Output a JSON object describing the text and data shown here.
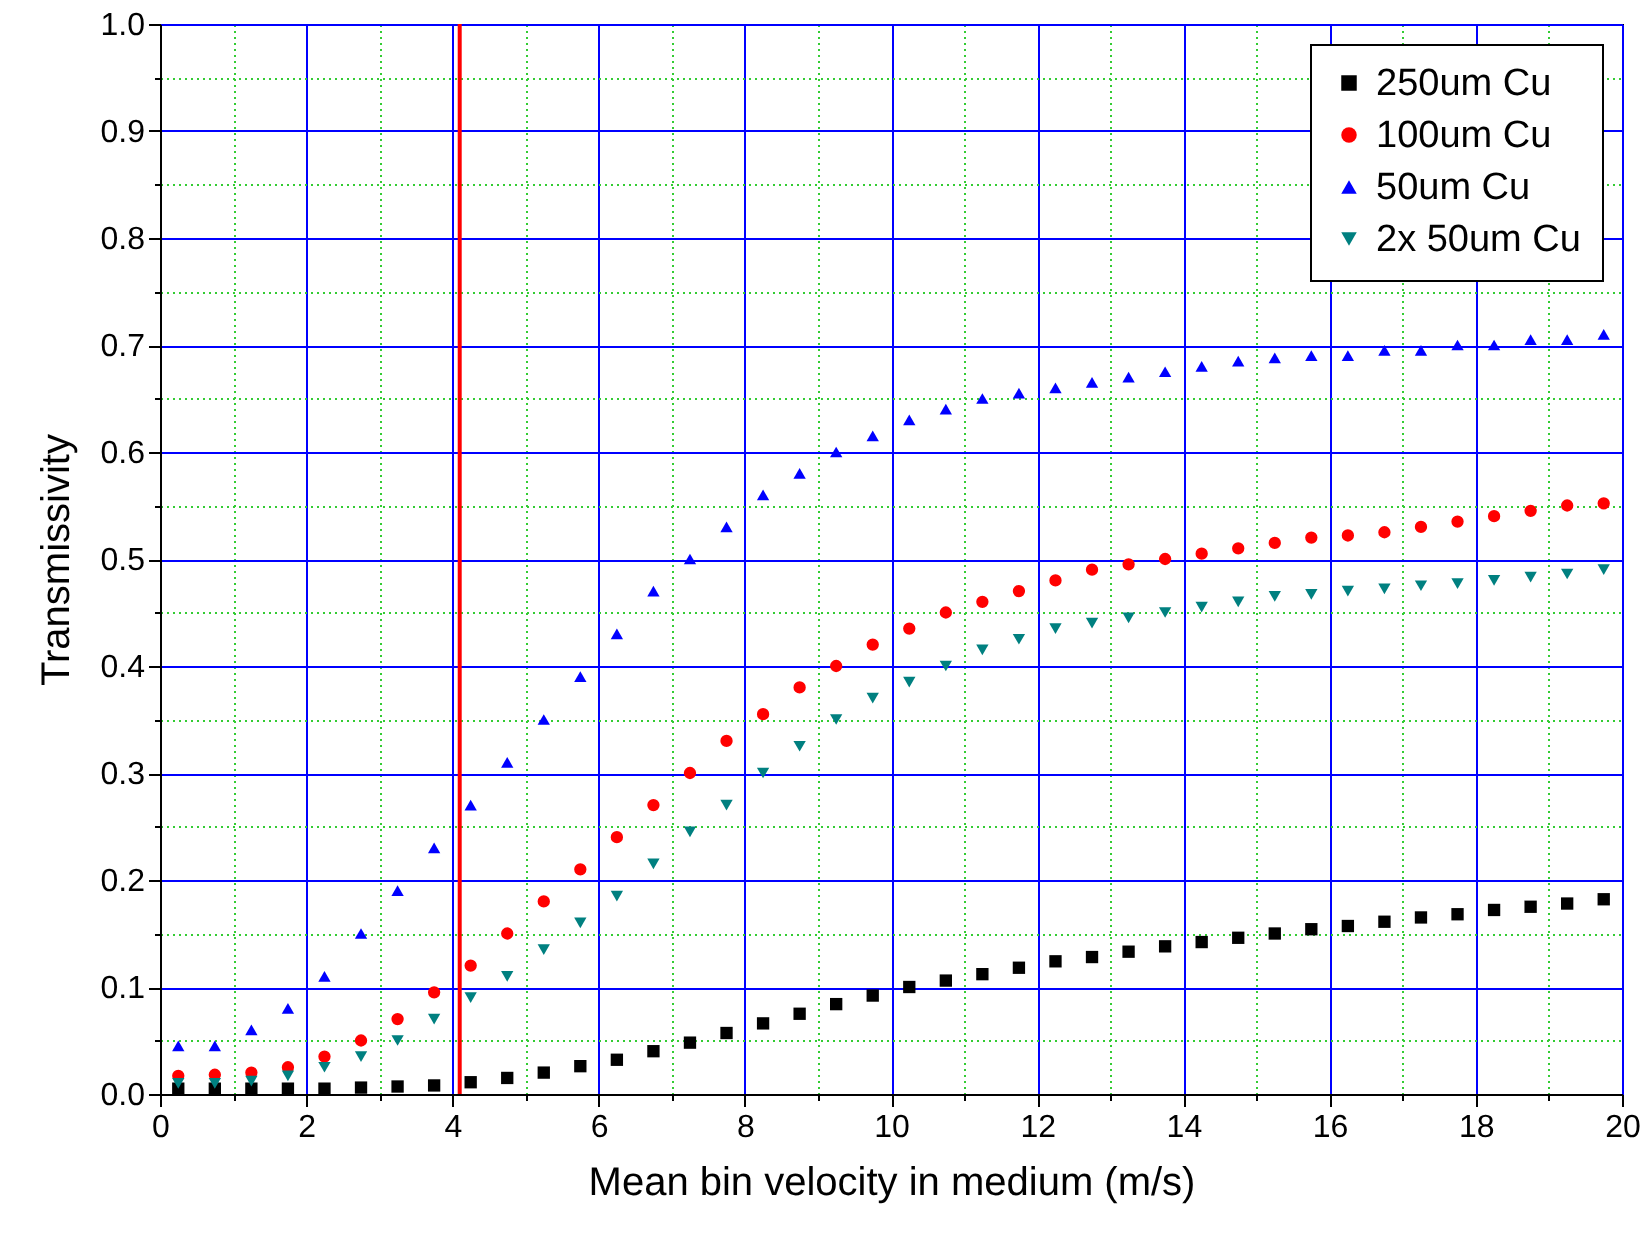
{
  "chart_data": {
    "type": "scatter",
    "xlabel": "Mean bin velocity in medium (m/s)",
    "ylabel": "Transmissivity",
    "x": [
      0.25,
      0.75,
      1.25,
      1.75,
      2.25,
      2.75,
      3.25,
      3.75,
      4.25,
      4.75,
      5.25,
      5.75,
      6.25,
      6.75,
      7.25,
      7.75,
      8.25,
      8.75,
      9.25,
      9.75,
      10.25,
      10.75,
      11.25,
      11.75,
      12.25,
      12.75,
      13.25,
      13.75,
      14.25,
      14.75,
      15.25,
      15.75,
      16.25,
      16.75,
      17.25,
      17.75,
      18.25,
      18.75,
      19.25,
      19.75
    ],
    "series": [
      {
        "name": "250um Cu",
        "color": "#000000",
        "marker": "square",
        "values": [
          0.005,
          0.005,
          0.005,
          0.005,
          0.005,
          0.006,
          0.007,
          0.008,
          0.011,
          0.015,
          0.02,
          0.026,
          0.032,
          0.04,
          0.048,
          0.057,
          0.066,
          0.075,
          0.084,
          0.092,
          0.1,
          0.106,
          0.112,
          0.118,
          0.124,
          0.128,
          0.133,
          0.138,
          0.142,
          0.146,
          0.15,
          0.154,
          0.157,
          0.161,
          0.165,
          0.168,
          0.172,
          0.175,
          0.178,
          0.182
        ]
      },
      {
        "name": "100um Cu",
        "color": "#ff0000",
        "marker": "circle",
        "values": [
          0.017,
          0.018,
          0.02,
          0.025,
          0.035,
          0.05,
          0.07,
          0.095,
          0.12,
          0.15,
          0.18,
          0.21,
          0.24,
          0.27,
          0.3,
          0.33,
          0.355,
          0.38,
          0.4,
          0.42,
          0.435,
          0.45,
          0.46,
          0.47,
          0.48,
          0.49,
          0.495,
          0.5,
          0.505,
          0.51,
          0.515,
          0.52,
          0.522,
          0.525,
          0.53,
          0.535,
          0.54,
          0.545,
          0.55,
          0.552
        ]
      },
      {
        "name": "50um Cu",
        "color": "#0000ff",
        "marker": "triangle",
        "values": [
          0.045,
          0.045,
          0.06,
          0.08,
          0.11,
          0.15,
          0.19,
          0.23,
          0.27,
          0.31,
          0.35,
          0.39,
          0.43,
          0.47,
          0.5,
          0.53,
          0.56,
          0.58,
          0.6,
          0.615,
          0.63,
          0.64,
          0.65,
          0.655,
          0.66,
          0.665,
          0.67,
          0.675,
          0.68,
          0.685,
          0.688,
          0.69,
          0.69,
          0.695,
          0.695,
          0.7,
          0.7,
          0.705,
          0.705,
          0.71
        ]
      },
      {
        "name": "2x 50um Cu",
        "color": "#008080",
        "marker": "triangle-down",
        "values": [
          0.01,
          0.01,
          0.012,
          0.017,
          0.025,
          0.035,
          0.05,
          0.07,
          0.09,
          0.11,
          0.135,
          0.16,
          0.185,
          0.215,
          0.245,
          0.27,
          0.3,
          0.325,
          0.35,
          0.37,
          0.385,
          0.4,
          0.415,
          0.425,
          0.435,
          0.44,
          0.445,
          0.45,
          0.455,
          0.46,
          0.465,
          0.467,
          0.47,
          0.472,
          0.475,
          0.477,
          0.48,
          0.483,
          0.486,
          0.49
        ]
      }
    ],
    "xlim": [
      0,
      20
    ],
    "xticks": [
      0,
      {
        "value": 1,
        "label": null
      },
      2,
      {
        "value": 3,
        "label": null
      },
      4,
      {
        "value": 5,
        "label": null
      },
      6,
      {
        "value": 7,
        "label": null
      },
      8,
      {
        "value": 9,
        "label": null
      },
      10,
      {
        "value": 11,
        "label": null
      },
      12,
      {
        "value": 13,
        "label": null
      },
      14,
      {
        "value": 15,
        "label": null
      },
      16,
      {
        "value": 17,
        "label": null
      },
      18,
      {
        "value": 19,
        "label": null
      },
      20
    ],
    "ylim": [
      0,
      1
    ],
    "yticks": [
      {
        "value": 0,
        "label": "0.0"
      },
      {
        "value": 0.05,
        "label": null
      },
      {
        "value": 0.1,
        "label": "0.1"
      },
      {
        "value": 0.15,
        "label": null
      },
      {
        "value": 0.2,
        "label": "0.2"
      },
      {
        "value": 0.25,
        "label": null
      },
      {
        "value": 0.3,
        "label": "0.3"
      },
      {
        "value": 0.35,
        "label": null
      },
      {
        "value": 0.4,
        "label": "0.4"
      },
      {
        "value": 0.45,
        "label": null
      },
      {
        "value": 0.5,
        "label": "0.5"
      },
      {
        "value": 0.55,
        "label": null
      },
      {
        "value": 0.6,
        "label": "0.6"
      },
      {
        "value": 0.65,
        "label": null
      },
      {
        "value": 0.7,
        "label": "0.7"
      },
      {
        "value": 0.75,
        "label": null
      },
      {
        "value": 0.8,
        "label": "0.8"
      },
      {
        "value": 0.85,
        "label": null
      },
      {
        "value": 0.9,
        "label": "0.9"
      },
      {
        "value": 0.95,
        "label": null
      },
      {
        "value": 1,
        "label": "1.0"
      }
    ],
    "ref_lines": [
      {
        "axis": "x",
        "value": 4.1,
        "color": "#ff0000"
      }
    ],
    "grid": true,
    "legend": "top right"
  }
}
